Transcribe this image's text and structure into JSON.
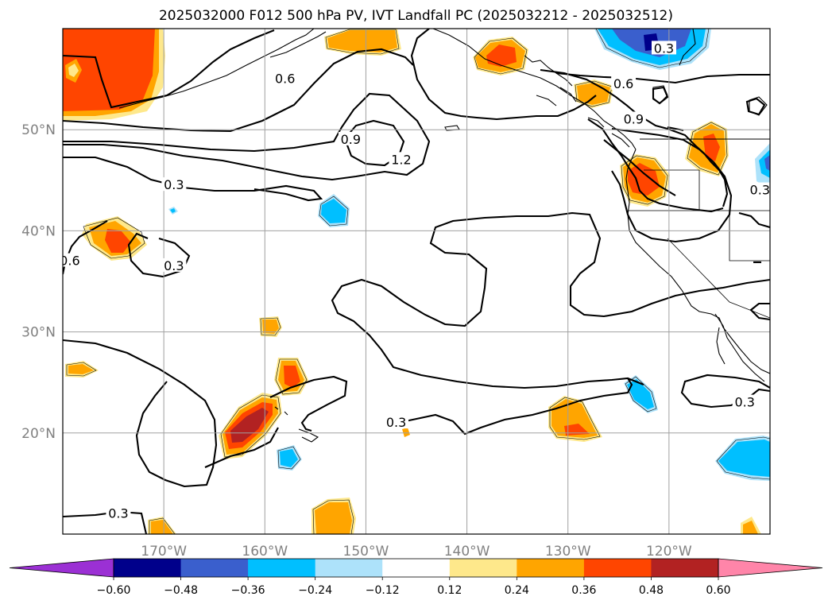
{
  "title": "2025032000 F012 500 hPa PV, IVT Landfall PC (2025032212 - 2025032512)",
  "map": {
    "lon_range": [
      -180,
      -110
    ],
    "lat_range": [
      10,
      60
    ],
    "lat_ticks": [
      {
        "value": 50,
        "label": "50°N"
      },
      {
        "value": 40,
        "label": "40°N"
      },
      {
        "value": 30,
        "label": "30°N"
      },
      {
        "value": 20,
        "label": "20°N"
      }
    ],
    "lon_ticks": [
      {
        "value": -170,
        "label": "170°W"
      },
      {
        "value": -160,
        "label": "160°W"
      },
      {
        "value": -150,
        "label": "150°W"
      },
      {
        "value": -140,
        "label": "140°W"
      },
      {
        "value": -130,
        "label": "130°W"
      },
      {
        "value": -120,
        "label": "120°W"
      }
    ],
    "gridlines": true,
    "contour_labels": [
      {
        "text": "0.6",
        "lon": -158.0,
        "lat": 55.0
      },
      {
        "text": "0.6",
        "lon": -124.5,
        "lat": 54.5
      },
      {
        "text": "0.9",
        "lon": -123.5,
        "lat": 51.0
      },
      {
        "text": "0.9",
        "lon": -151.5,
        "lat": 49.0
      },
      {
        "text": "1.2",
        "lon": -146.5,
        "lat": 47.0
      },
      {
        "text": "0.3",
        "lon": -169.0,
        "lat": 44.5
      },
      {
        "text": "0.3",
        "lon": -169.0,
        "lat": 36.5
      },
      {
        "text": "0.6",
        "lon": -179.3,
        "lat": 37.0
      },
      {
        "text": "0.3",
        "lon": -147.0,
        "lat": 21.0
      },
      {
        "text": "0.3",
        "lon": -174.5,
        "lat": 12.0
      },
      {
        "text": "0.3",
        "lon": -112.5,
        "lat": 23.0
      },
      {
        "text": "0.3",
        "lon": -120.5,
        "lat": 58.0
      },
      {
        "text": "0.3",
        "lon": -111.0,
        "lat": 44.0
      }
    ]
  },
  "colorbar": {
    "levels": [
      "−0.60",
      "−0.48",
      "−0.36",
      "−0.24",
      "−0.12",
      "0.12",
      "0.24",
      "0.36",
      "0.48",
      "0.60"
    ],
    "colors": {
      "lt_m060": "#9b30d4",
      "m060_m048": "#00008b",
      "m048_m036": "#3a5fcd",
      "m036_m024": "#00bfff",
      "m024_m012": "#ade2fa",
      "m012_p012": "#ffffff",
      "p012_p024": "#fee88b",
      "p024_p036": "#ffa500",
      "p036_p048": "#ff4500",
      "p048_p060": "#b22222",
      "gt_p060": "#ff85a9"
    }
  }
}
